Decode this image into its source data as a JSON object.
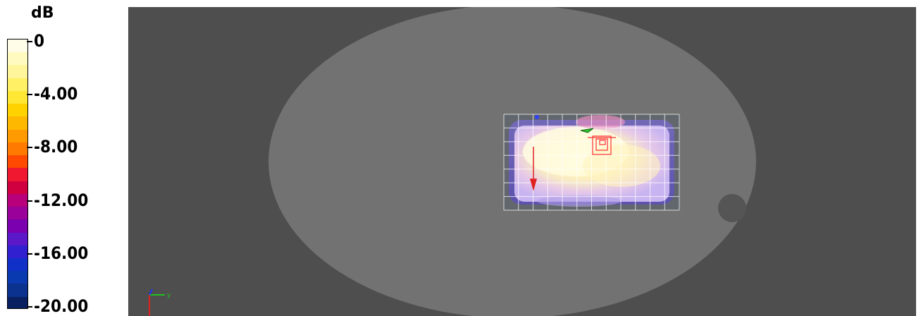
{
  "legend": {
    "unit": "dB",
    "ticks": [
      "0",
      "-4.00",
      "-8.00",
      "-12.00",
      "-16.00",
      "-20.00"
    ],
    "colors": [
      "#fffde8",
      "#fffac0",
      "#fff59a",
      "#fff066",
      "#ffe733",
      "#ffd200",
      "#ffb800",
      "#ff9a00",
      "#ff7a00",
      "#ff4a00",
      "#f01830",
      "#d00040",
      "#b8007a",
      "#9a009a",
      "#7a00b0",
      "#5a18c8",
      "#3020d0",
      "#1030c8",
      "#0a3ab0",
      "#0c3290",
      "#082060"
    ]
  },
  "viewport": {
    "background": "#4e4e4e",
    "phantom_color": "#727272",
    "axis_triad": {
      "x_color": "#e02020",
      "y_color": "#20c020",
      "z_color": "#2030ff",
      "y_label": "y"
    }
  }
}
